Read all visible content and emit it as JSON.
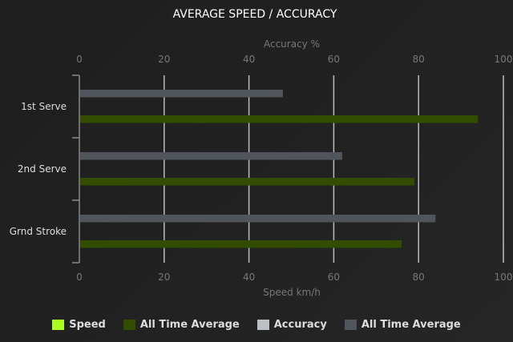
{
  "chart_data": {
    "type": "bar",
    "orientation": "horizontal",
    "title": "AVERAGE SPEED / ACCURACY",
    "categories": [
      "1st Serve",
      "2nd Serve",
      "Grnd Stroke"
    ],
    "top_axis": {
      "label": "Accuracy %",
      "range": [
        0,
        100
      ],
      "ticks": [
        0,
        20,
        40,
        60,
        80,
        100
      ]
    },
    "bottom_axis": {
      "label": "Speed km/h",
      "range": [
        0,
        100
      ],
      "ticks": [
        0,
        20,
        40,
        60,
        80,
        100
      ]
    },
    "grid": true,
    "legend_position": "bottom",
    "series": [
      {
        "name": "Speed",
        "color": "#aaff22",
        "values": [
          null,
          null,
          null
        ]
      },
      {
        "name": "All Time Average",
        "axis": "bottom",
        "color": "#334d00",
        "values": [
          94,
          79,
          76
        ]
      },
      {
        "name": "Accuracy",
        "color": "#bcc0c4",
        "values": [
          null,
          null,
          null
        ]
      },
      {
        "name": "All Time Average",
        "axis": "top",
        "color": "#50555c",
        "values": [
          48,
          62,
          84
        ]
      }
    ]
  }
}
